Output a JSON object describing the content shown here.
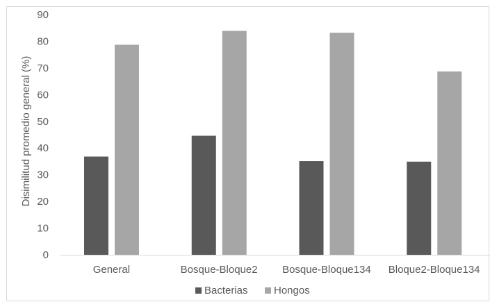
{
  "chart_data": {
    "type": "bar",
    "title": "",
    "xlabel": "",
    "ylabel": "Disimilitud promedio general (%)",
    "ylim": [
      0,
      90
    ],
    "yticks": [
      "0",
      "10",
      "20",
      "30",
      "40",
      "50",
      "60",
      "70",
      "80",
      "90"
    ],
    "categories": [
      "General",
      "Bosque-Bloque2",
      "Bosque-Bloque134",
      "Bloque2-Bloque134"
    ],
    "series": [
      {
        "name": "Bacterias",
        "color": "#595959",
        "values": [
          36.8,
          44.6,
          35.1,
          34.9
        ]
      },
      {
        "name": "Hongos",
        "color": "#a6a6a6",
        "values": [
          78.7,
          83.9,
          83.2,
          68.7
        ]
      }
    ],
    "grid": false,
    "legend": "bottom"
  }
}
